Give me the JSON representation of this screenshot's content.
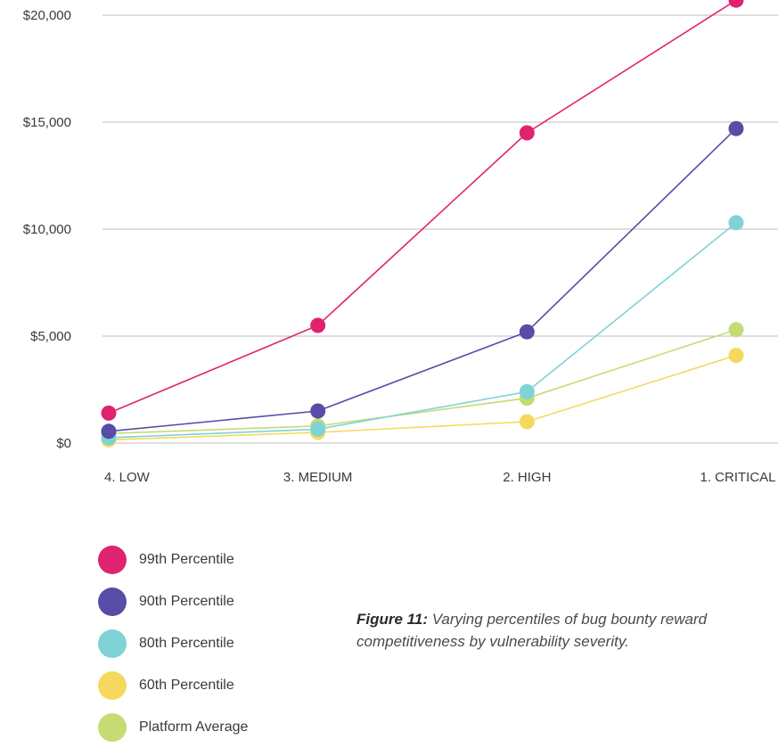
{
  "chart_data": {
    "type": "line",
    "categories": [
      "4. LOW",
      "3. MEDIUM",
      "2. HIGH",
      "1. CRITICAL"
    ],
    "y_ticks": [
      0,
      5000,
      10000,
      15000,
      20000
    ],
    "y_tick_labels": [
      "$0",
      "$5,000",
      "$10,000",
      "$15,000",
      "$20,000"
    ],
    "ylim": [
      0,
      20000
    ],
    "grid": true,
    "legend_position": "bottom-left",
    "series": [
      {
        "name": "Platform Average",
        "color": "#c5dc73",
        "values": [
          450,
          800,
          2100,
          5300
        ]
      },
      {
        "name": "60th Percentile",
        "color": "#f5d95e",
        "values": [
          150,
          500,
          1000,
          4100
        ]
      },
      {
        "name": "80th Percentile",
        "color": "#7fd2d6",
        "values": [
          250,
          650,
          2400,
          10300
        ]
      },
      {
        "name": "90th Percentile",
        "color": "#574ca6",
        "values": [
          550,
          1500,
          5200,
          14700
        ]
      },
      {
        "name": "99th Percentile",
        "color": "#e0236e",
        "values": [
          1400,
          5500,
          14500,
          20700
        ]
      }
    ]
  },
  "legend": [
    {
      "label": "99th Percentile",
      "color": "#e0236e"
    },
    {
      "label": "90th Percentile",
      "color": "#574ca6"
    },
    {
      "label": "80th Percentile",
      "color": "#7fd2d6"
    },
    {
      "label": "60th Percentile",
      "color": "#f5d95e"
    },
    {
      "label": "Platform Average",
      "color": "#c5dc73"
    }
  ],
  "caption": {
    "lead": "Figure 11:",
    "text": " Varying percentiles of bug bounty reward competitiveness by vulnerability severity."
  }
}
